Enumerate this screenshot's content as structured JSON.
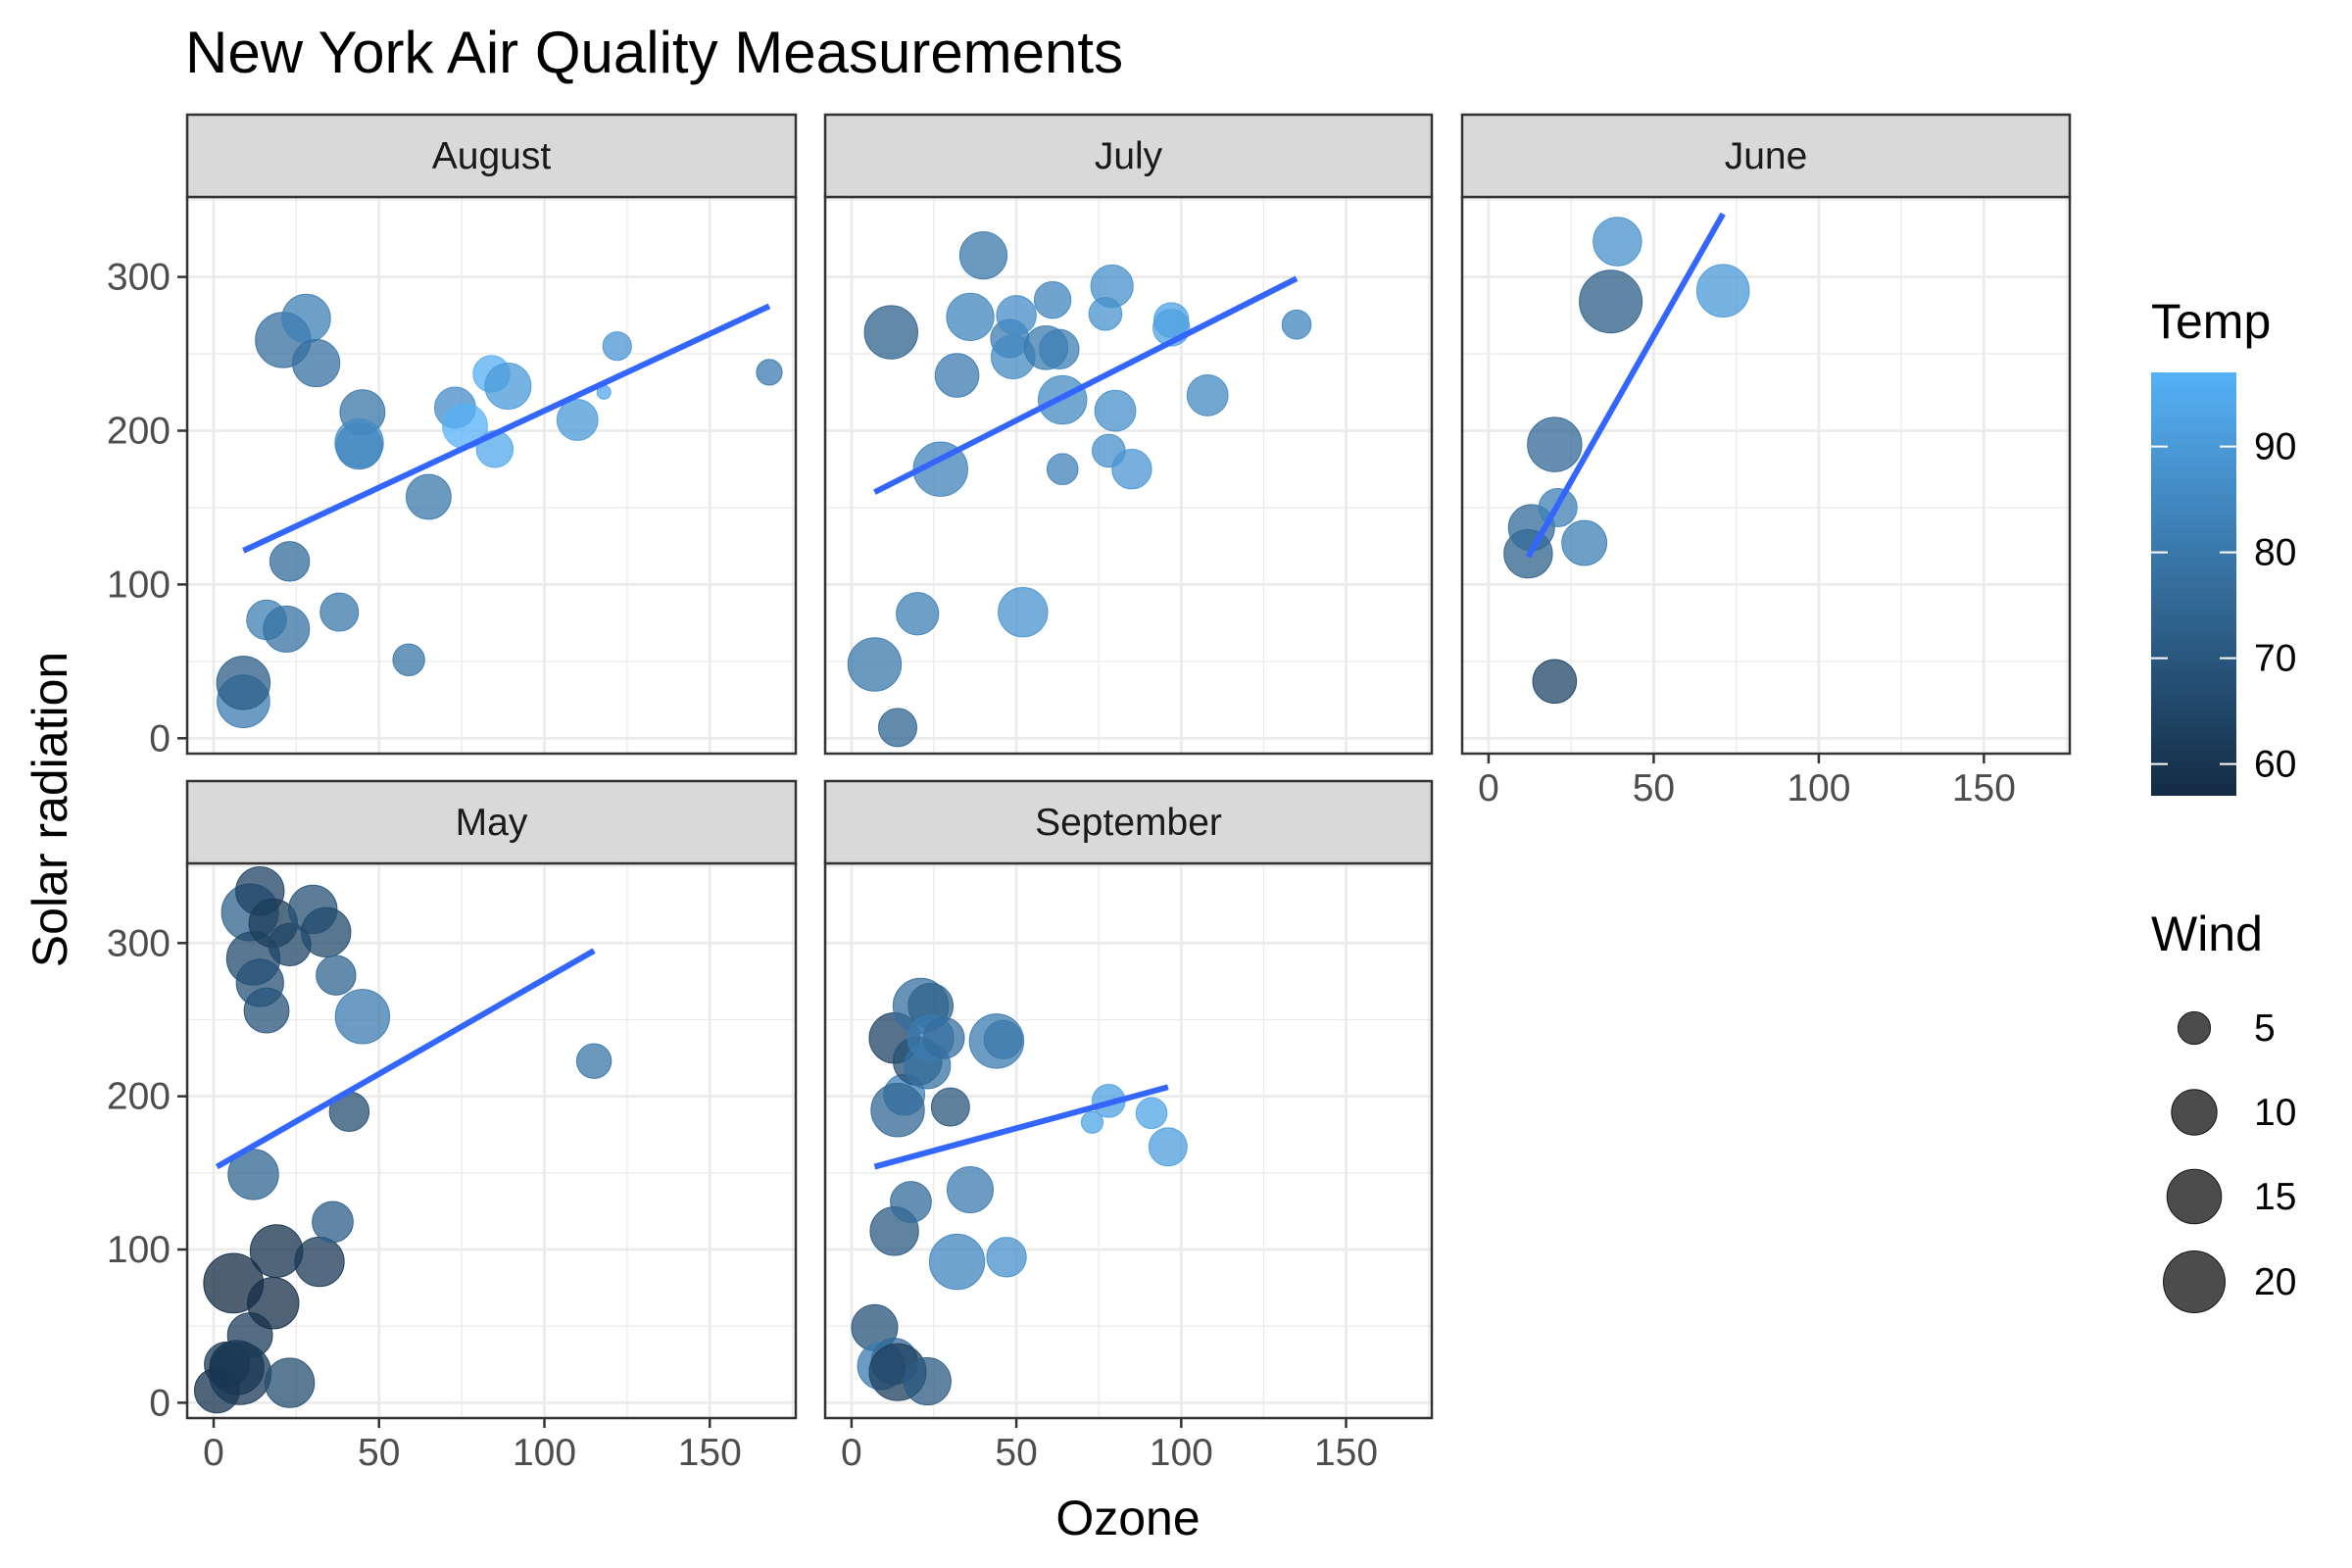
{
  "chart_data": {
    "type": "scatter",
    "title": "New York Air Quality Measurements",
    "xlabel": "Ozone",
    "ylabel": "Solar radiation",
    "xlim": [
      -8,
      176
    ],
    "ylim": [
      -10,
      352
    ],
    "x_ticks": [
      0,
      50,
      100,
      150
    ],
    "y_ticks": [
      0,
      100,
      200,
      300
    ],
    "x_tick_labels": [
      "0",
      "50",
      "100",
      "150"
    ],
    "y_tick_labels": [
      "0",
      "100",
      "200",
      "300"
    ],
    "grid": true,
    "colors": {
      "temp_low": "#132B43",
      "temp_high": "#56B1F7",
      "trend_line": "#3366FF",
      "strip_fill": "#D9D9D9",
      "grid_major": "#EBEBEB",
      "panel_border": "#333333"
    },
    "color_legend": {
      "title": "Temp",
      "placement": "right",
      "range": [
        57,
        97
      ],
      "breaks": [
        60,
        70,
        80,
        90
      ],
      "labels": [
        "60",
        "70",
        "80",
        "90"
      ]
    },
    "size_legend": {
      "title": "Wind",
      "placement": "right",
      "range": [
        2.3,
        20.7
      ],
      "breaks": [
        5,
        10,
        15,
        20
      ],
      "labels": [
        "5",
        "10",
        "15",
        "20"
      ]
    },
    "panels": [
      {
        "name": "August",
        "trend": {
          "x0": 9,
          "y0": 122,
          "x1": 168,
          "y1": 281
        },
        "points": [
          {
            "x": 9,
            "y": 24,
            "temp": 81,
            "wind": 13.8
          },
          {
            "x": 9,
            "y": 36,
            "temp": 72,
            "wind": 14.3
          },
          {
            "x": 16,
            "y": 77,
            "temp": 82,
            "wind": 7.4
          },
          {
            "x": 22,
            "y": 71,
            "temp": 78,
            "wind": 10.3
          },
          {
            "x": 23,
            "y": 115,
            "temp": 76,
            "wind": 7.4
          },
          {
            "x": 38,
            "y": 82,
            "temp": 80,
            "wind": 6.9
          },
          {
            "x": 59,
            "y": 51,
            "temp": 79,
            "wind": 4.8
          },
          {
            "x": 21,
            "y": 259,
            "temp": 77,
            "wind": 15.5
          },
          {
            "x": 28,
            "y": 273,
            "temp": 82,
            "wind": 11.5
          },
          {
            "x": 31,
            "y": 244,
            "temp": 78,
            "wind": 10.9
          },
          {
            "x": 45,
            "y": 212,
            "temp": 79,
            "wind": 9.7
          },
          {
            "x": 44,
            "y": 190,
            "temp": 80,
            "wind": 10.3
          },
          {
            "x": 44,
            "y": 192,
            "temp": 86,
            "wind": 11.5
          },
          {
            "x": 65,
            "y": 157,
            "temp": 80,
            "wind": 9.7
          },
          {
            "x": 73,
            "y": 215,
            "temp": 86,
            "wind": 8.0
          },
          {
            "x": 76,
            "y": 203,
            "temp": 97,
            "wind": 9.7
          },
          {
            "x": 84,
            "y": 237,
            "temp": 96,
            "wind": 6.3
          },
          {
            "x": 85,
            "y": 188,
            "temp": 94,
            "wind": 6.3
          },
          {
            "x": 89,
            "y": 229,
            "temp": 90,
            "wind": 10.3
          },
          {
            "x": 110,
            "y": 207,
            "temp": 90,
            "wind": 8.0
          },
          {
            "x": 118,
            "y": 225,
            "temp": 94,
            "wind": 2.3
          },
          {
            "x": 122,
            "y": 255,
            "temp": 89,
            "wind": 4.0
          },
          {
            "x": 168,
            "y": 238,
            "temp": 81,
            "wind": 3.4
          }
        ]
      },
      {
        "name": "July",
        "trend": {
          "x0": 7,
          "y0": 160,
          "x1": 135,
          "y1": 299
        },
        "points": [
          {
            "x": 7,
            "y": 48,
            "temp": 80,
            "wind": 14.3
          },
          {
            "x": 14,
            "y": 7,
            "temp": 74,
            "wind": 6.9
          },
          {
            "x": 20,
            "y": 81,
            "temp": 82,
            "wind": 8.6
          },
          {
            "x": 12,
            "y": 264,
            "temp": 73,
            "wind": 14.3
          },
          {
            "x": 27,
            "y": 175,
            "temp": 83,
            "wind": 14.9
          },
          {
            "x": 32,
            "y": 236,
            "temp": 81,
            "wind": 9.2
          },
          {
            "x": 36,
            "y": 274,
            "temp": 84,
            "wind": 10.9
          },
          {
            "x": 40,
            "y": 314,
            "temp": 80,
            "wind": 10.9
          },
          {
            "x": 48,
            "y": 260,
            "temp": 81,
            "wind": 6.9
          },
          {
            "x": 49,
            "y": 248,
            "temp": 85,
            "wind": 9.2
          },
          {
            "x": 50,
            "y": 275,
            "temp": 86,
            "wind": 7.4
          },
          {
            "x": 52,
            "y": 82,
            "temp": 88,
            "wind": 12.0
          },
          {
            "x": 61,
            "y": 285,
            "temp": 84,
            "wind": 6.3
          },
          {
            "x": 59,
            "y": 254,
            "temp": 81,
            "wind": 9.2
          },
          {
            "x": 63,
            "y": 253,
            "temp": 82,
            "wind": 7.4
          },
          {
            "x": 64,
            "y": 220,
            "temp": 85,
            "wind": 11.5
          },
          {
            "x": 64,
            "y": 175,
            "temp": 83,
            "wind": 4.6
          },
          {
            "x": 77,
            "y": 276,
            "temp": 88,
            "wind": 5.1
          },
          {
            "x": 78,
            "y": 187,
            "temp": 87,
            "wind": 5.1
          },
          {
            "x": 79,
            "y": 294,
            "temp": 87,
            "wind": 8.6
          },
          {
            "x": 80,
            "y": 213,
            "temp": 87,
            "wind": 8.0
          },
          {
            "x": 85,
            "y": 175,
            "temp": 89,
            "wind": 7.4
          },
          {
            "x": 97,
            "y": 267,
            "temp": 92,
            "wind": 6.3
          },
          {
            "x": 97,
            "y": 272,
            "temp": 92,
            "wind": 5.7
          },
          {
            "x": 108,
            "y": 223,
            "temp": 85,
            "wind": 8.0
          },
          {
            "x": 135,
            "y": 269,
            "temp": 84,
            "wind": 4.1
          }
        ]
      },
      {
        "name": "June",
        "trend": {
          "x0": 12,
          "y0": 118,
          "x1": 71,
          "y1": 341
        },
        "points": [
          {
            "x": 12,
            "y": 120,
            "temp": 73,
            "wind": 11.5
          },
          {
            "x": 13,
            "y": 137,
            "temp": 76,
            "wind": 10.3
          },
          {
            "x": 20,
            "y": 37,
            "temp": 65,
            "wind": 9.2
          },
          {
            "x": 20,
            "y": 191,
            "temp": 75,
            "wind": 14.9
          },
          {
            "x": 21,
            "y": 150,
            "temp": 82,
            "wind": 6.9
          },
          {
            "x": 29,
            "y": 127,
            "temp": 82,
            "wind": 9.7
          },
          {
            "x": 37,
            "y": 284,
            "temp": 72,
            "wind": 20.7
          },
          {
            "x": 39,
            "y": 323,
            "temp": 87,
            "wind": 11.5
          },
          {
            "x": 71,
            "y": 291,
            "temp": 90,
            "wind": 13.8
          }
        ]
      },
      {
        "name": "May",
        "trend": {
          "x0": 1,
          "y0": 154,
          "x1": 115,
          "y1": 295
        },
        "points": [
          {
            "x": 1,
            "y": 8,
            "temp": 59,
            "wind": 9.7
          },
          {
            "x": 4,
            "y": 25,
            "temp": 61,
            "wind": 9.7
          },
          {
            "x": 6,
            "y": 78,
            "temp": 57,
            "wind": 18.4
          },
          {
            "x": 7,
            "y": 23,
            "temp": 59,
            "wind": 14.9
          },
          {
            "x": 8,
            "y": 19,
            "temp": 61,
            "wind": 20.1
          },
          {
            "x": 11,
            "y": 44,
            "temp": 62,
            "wind": 9.7
          },
          {
            "x": 11,
            "y": 320,
            "temp": 73,
            "wind": 16.6
          },
          {
            "x": 12,
            "y": 149,
            "temp": 74,
            "wind": 12.6
          },
          {
            "x": 12,
            "y": 290,
            "temp": 66,
            "wind": 14.3
          },
          {
            "x": 14,
            "y": 334,
            "temp": 64,
            "wind": 11.5
          },
          {
            "x": 14,
            "y": 274,
            "temp": 68,
            "wind": 10.9
          },
          {
            "x": 16,
            "y": 256,
            "temp": 69,
            "wind": 9.7
          },
          {
            "x": 18,
            "y": 313,
            "temp": 62,
            "wind": 11.5
          },
          {
            "x": 18,
            "y": 65,
            "temp": 58,
            "wind": 13.2
          },
          {
            "x": 19,
            "y": 99,
            "temp": 59,
            "wind": 13.8
          },
          {
            "x": 23,
            "y": 299,
            "temp": 65,
            "wind": 8.6
          },
          {
            "x": 23,
            "y": 13,
            "temp": 67,
            "wind": 12.0
          },
          {
            "x": 30,
            "y": 322,
            "temp": 68,
            "wind": 11.5
          },
          {
            "x": 32,
            "y": 92,
            "temp": 61,
            "wind": 12.0
          },
          {
            "x": 34,
            "y": 307,
            "temp": 66,
            "wind": 12.0
          },
          {
            "x": 36,
            "y": 118,
            "temp": 72,
            "wind": 8.0
          },
          {
            "x": 37,
            "y": 279,
            "temp": 74,
            "wind": 7.4
          },
          {
            "x": 41,
            "y": 190,
            "temp": 67,
            "wind": 7.4
          },
          {
            "x": 45,
            "y": 252,
            "temp": 81,
            "wind": 14.9
          },
          {
            "x": 115,
            "y": 223,
            "temp": 79,
            "wind": 5.7
          }
        ]
      },
      {
        "name": "September",
        "trend": {
          "x0": 7,
          "y0": 154,
          "x1": 96,
          "y1": 206
        },
        "points": [
          {
            "x": 7,
            "y": 49,
            "temp": 69,
            "wind": 10.3
          },
          {
            "x": 9,
            "y": 24,
            "temp": 81,
            "wind": 10.9
          },
          {
            "x": 13,
            "y": 27,
            "temp": 76,
            "wind": 10.3
          },
          {
            "x": 14,
            "y": 20,
            "temp": 63,
            "wind": 16.6
          },
          {
            "x": 16,
            "y": 201,
            "temp": 82,
            "wind": 8.0
          },
          {
            "x": 13,
            "y": 112,
            "temp": 71,
            "wind": 11.5
          },
          {
            "x": 13,
            "y": 238,
            "temp": 64,
            "wind": 12.6
          },
          {
            "x": 14,
            "y": 191,
            "temp": 75,
            "wind": 14.3
          },
          {
            "x": 18,
            "y": 131,
            "temp": 76,
            "wind": 8.0
          },
          {
            "x": 20,
            "y": 223,
            "temp": 68,
            "wind": 11.5
          },
          {
            "x": 21,
            "y": 259,
            "temp": 77,
            "wind": 15.5
          },
          {
            "x": 23,
            "y": 14,
            "temp": 71,
            "wind": 10.9
          },
          {
            "x": 23,
            "y": 220,
            "temp": 78,
            "wind": 10.3
          },
          {
            "x": 24,
            "y": 259,
            "temp": 73,
            "wind": 9.7
          },
          {
            "x": 24,
            "y": 238,
            "temp": 81,
            "wind": 10.3
          },
          {
            "x": 28,
            "y": 238,
            "temp": 77,
            "wind": 8.0
          },
          {
            "x": 30,
            "y": 193,
            "temp": 70,
            "wind": 6.9
          },
          {
            "x": 32,
            "y": 92,
            "temp": 84,
            "wind": 15.5
          },
          {
            "x": 36,
            "y": 139,
            "temp": 81,
            "wind": 10.3
          },
          {
            "x": 44,
            "y": 236,
            "temp": 81,
            "wind": 14.9
          },
          {
            "x": 46,
            "y": 237,
            "temp": 80,
            "wind": 6.9
          },
          {
            "x": 47,
            "y": 95,
            "temp": 87,
            "wind": 7.4
          },
          {
            "x": 73,
            "y": 183,
            "temp": 93,
            "wind": 2.8
          },
          {
            "x": 78,
            "y": 197,
            "temp": 92,
            "wind": 5.1
          },
          {
            "x": 91,
            "y": 189,
            "temp": 93,
            "wind": 4.6
          },
          {
            "x": 96,
            "y": 167,
            "temp": 91,
            "wind": 6.9
          }
        ]
      }
    ]
  }
}
